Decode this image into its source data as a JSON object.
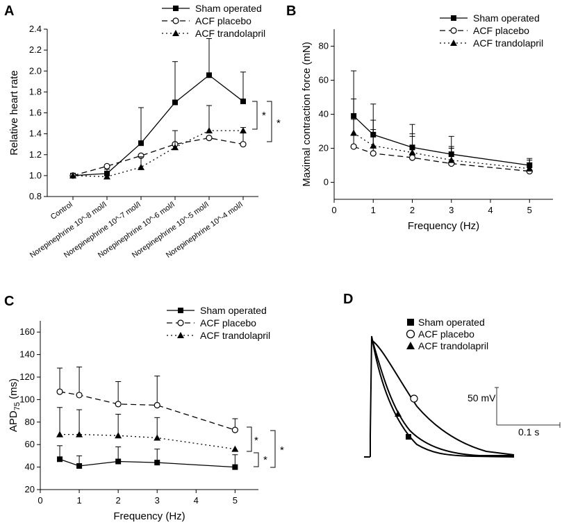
{
  "figure": {
    "panels": [
      "A",
      "B",
      "C",
      "D"
    ]
  },
  "chart_data": [
    {
      "panel": "A",
      "type": "line",
      "categories": [
        "Control",
        "Norepinephrine 10^-8 mol/l",
        "Norepinephrine 10^-7 mol/l",
        "Norepinephrine 10^-6 mol/l",
        "Norepinephrine 10^-5 mol/l",
        "Norepinephrine 10^-4 mol/l"
      ],
      "series": [
        {
          "name": "Sham operated",
          "values": [
            1.0,
            1.02,
            1.31,
            1.7,
            1.96,
            1.71
          ],
          "errors": [
            0.0,
            0.0,
            0.34,
            0.39,
            0.35,
            0.28
          ]
        },
        {
          "name": "ACF placebo",
          "values": [
            1.0,
            1.09,
            1.19,
            1.3,
            1.36,
            1.3
          ],
          "errors": [
            0.0,
            0.0,
            0.0,
            0.0,
            0.0,
            0.16
          ]
        },
        {
          "name": "ACF trandolapril",
          "values": [
            1.0,
            0.99,
            1.08,
            1.27,
            1.43,
            1.43
          ],
          "errors": [
            0.0,
            0.07,
            0.1,
            0.16,
            0.24,
            0.0
          ]
        }
      ],
      "xlabel": "",
      "ylabel": "Relative heart rate",
      "ylim": [
        0.8,
        2.4
      ],
      "yticks": [
        "0.8",
        "1.0",
        "1.2",
        "1.4",
        "1.6",
        "1.8",
        "2.0",
        "2.2",
        "2.4"
      ],
      "annotations": [
        "*",
        "*"
      ]
    },
    {
      "panel": "B",
      "type": "line",
      "x": [
        0.5,
        1,
        2,
        3,
        5
      ],
      "series": [
        {
          "name": "Sham operated",
          "values": [
            39,
            28,
            20.5,
            16.5,
            10
          ],
          "errors": [
            26.5,
            18,
            13.5,
            10.5,
            4
          ]
        },
        {
          "name": "ACF placebo",
          "values": [
            21,
            17,
            14.5,
            11,
            6.5
          ],
          "errors": [
            16,
            14,
            12.5,
            9,
            5
          ]
        },
        {
          "name": "ACF trandolapril",
          "values": [
            29,
            21.5,
            17.5,
            13,
            8
          ],
          "errors": [
            20,
            15,
            11,
            8,
            5
          ]
        }
      ],
      "xlabel": "Frequency (Hz)",
      "ylabel": "Maximal contraction force (mN)",
      "xlim": [
        0,
        5.6
      ],
      "ylim": [
        -10,
        90
      ],
      "xticks": [
        "0",
        "1",
        "2",
        "3",
        "4",
        "5"
      ],
      "yticks": [
        "0",
        "20",
        "40",
        "60",
        "80"
      ]
    },
    {
      "panel": "C",
      "type": "line",
      "x": [
        0.5,
        1,
        2,
        3,
        5
      ],
      "series": [
        {
          "name": "Sham operated",
          "values": [
            47,
            41,
            45,
            44,
            40
          ],
          "errors": [
            12,
            9,
            13,
            12,
            11
          ]
        },
        {
          "name": "ACF placebo",
          "values": [
            107,
            104,
            96,
            95,
            73
          ],
          "errors": [
            21,
            25,
            20,
            26,
            10
          ]
        },
        {
          "name": "ACF trandolapril",
          "values": [
            69,
            69,
            68,
            66,
            56
          ],
          "errors": [
            24,
            22,
            19,
            18,
            0
          ]
        }
      ],
      "xlabel": "Frequency (Hz)",
      "ylabel": "APD",
      "ylabel_sub": "75",
      "ylabel_unit": " (ms)",
      "xlim": [
        0,
        5.6
      ],
      "ylim": [
        20,
        170
      ],
      "xticks": [
        "0",
        "1",
        "2",
        "3",
        "4",
        "5"
      ],
      "yticks": [
        "20",
        "40",
        "60",
        "80",
        "100",
        "120",
        "140",
        "160"
      ],
      "annotations": [
        "*",
        "*",
        "*"
      ]
    },
    {
      "panel": "D",
      "type": "line",
      "series": [
        {
          "name": "Sham operated",
          "marker": "filled-square"
        },
        {
          "name": "ACF placebo",
          "marker": "open-circle"
        },
        {
          "name": "ACF trandolapril",
          "marker": "filled-triangle"
        }
      ],
      "scale_bar_voltage": "50 mV",
      "scale_bar_time": "0.1 s"
    }
  ]
}
